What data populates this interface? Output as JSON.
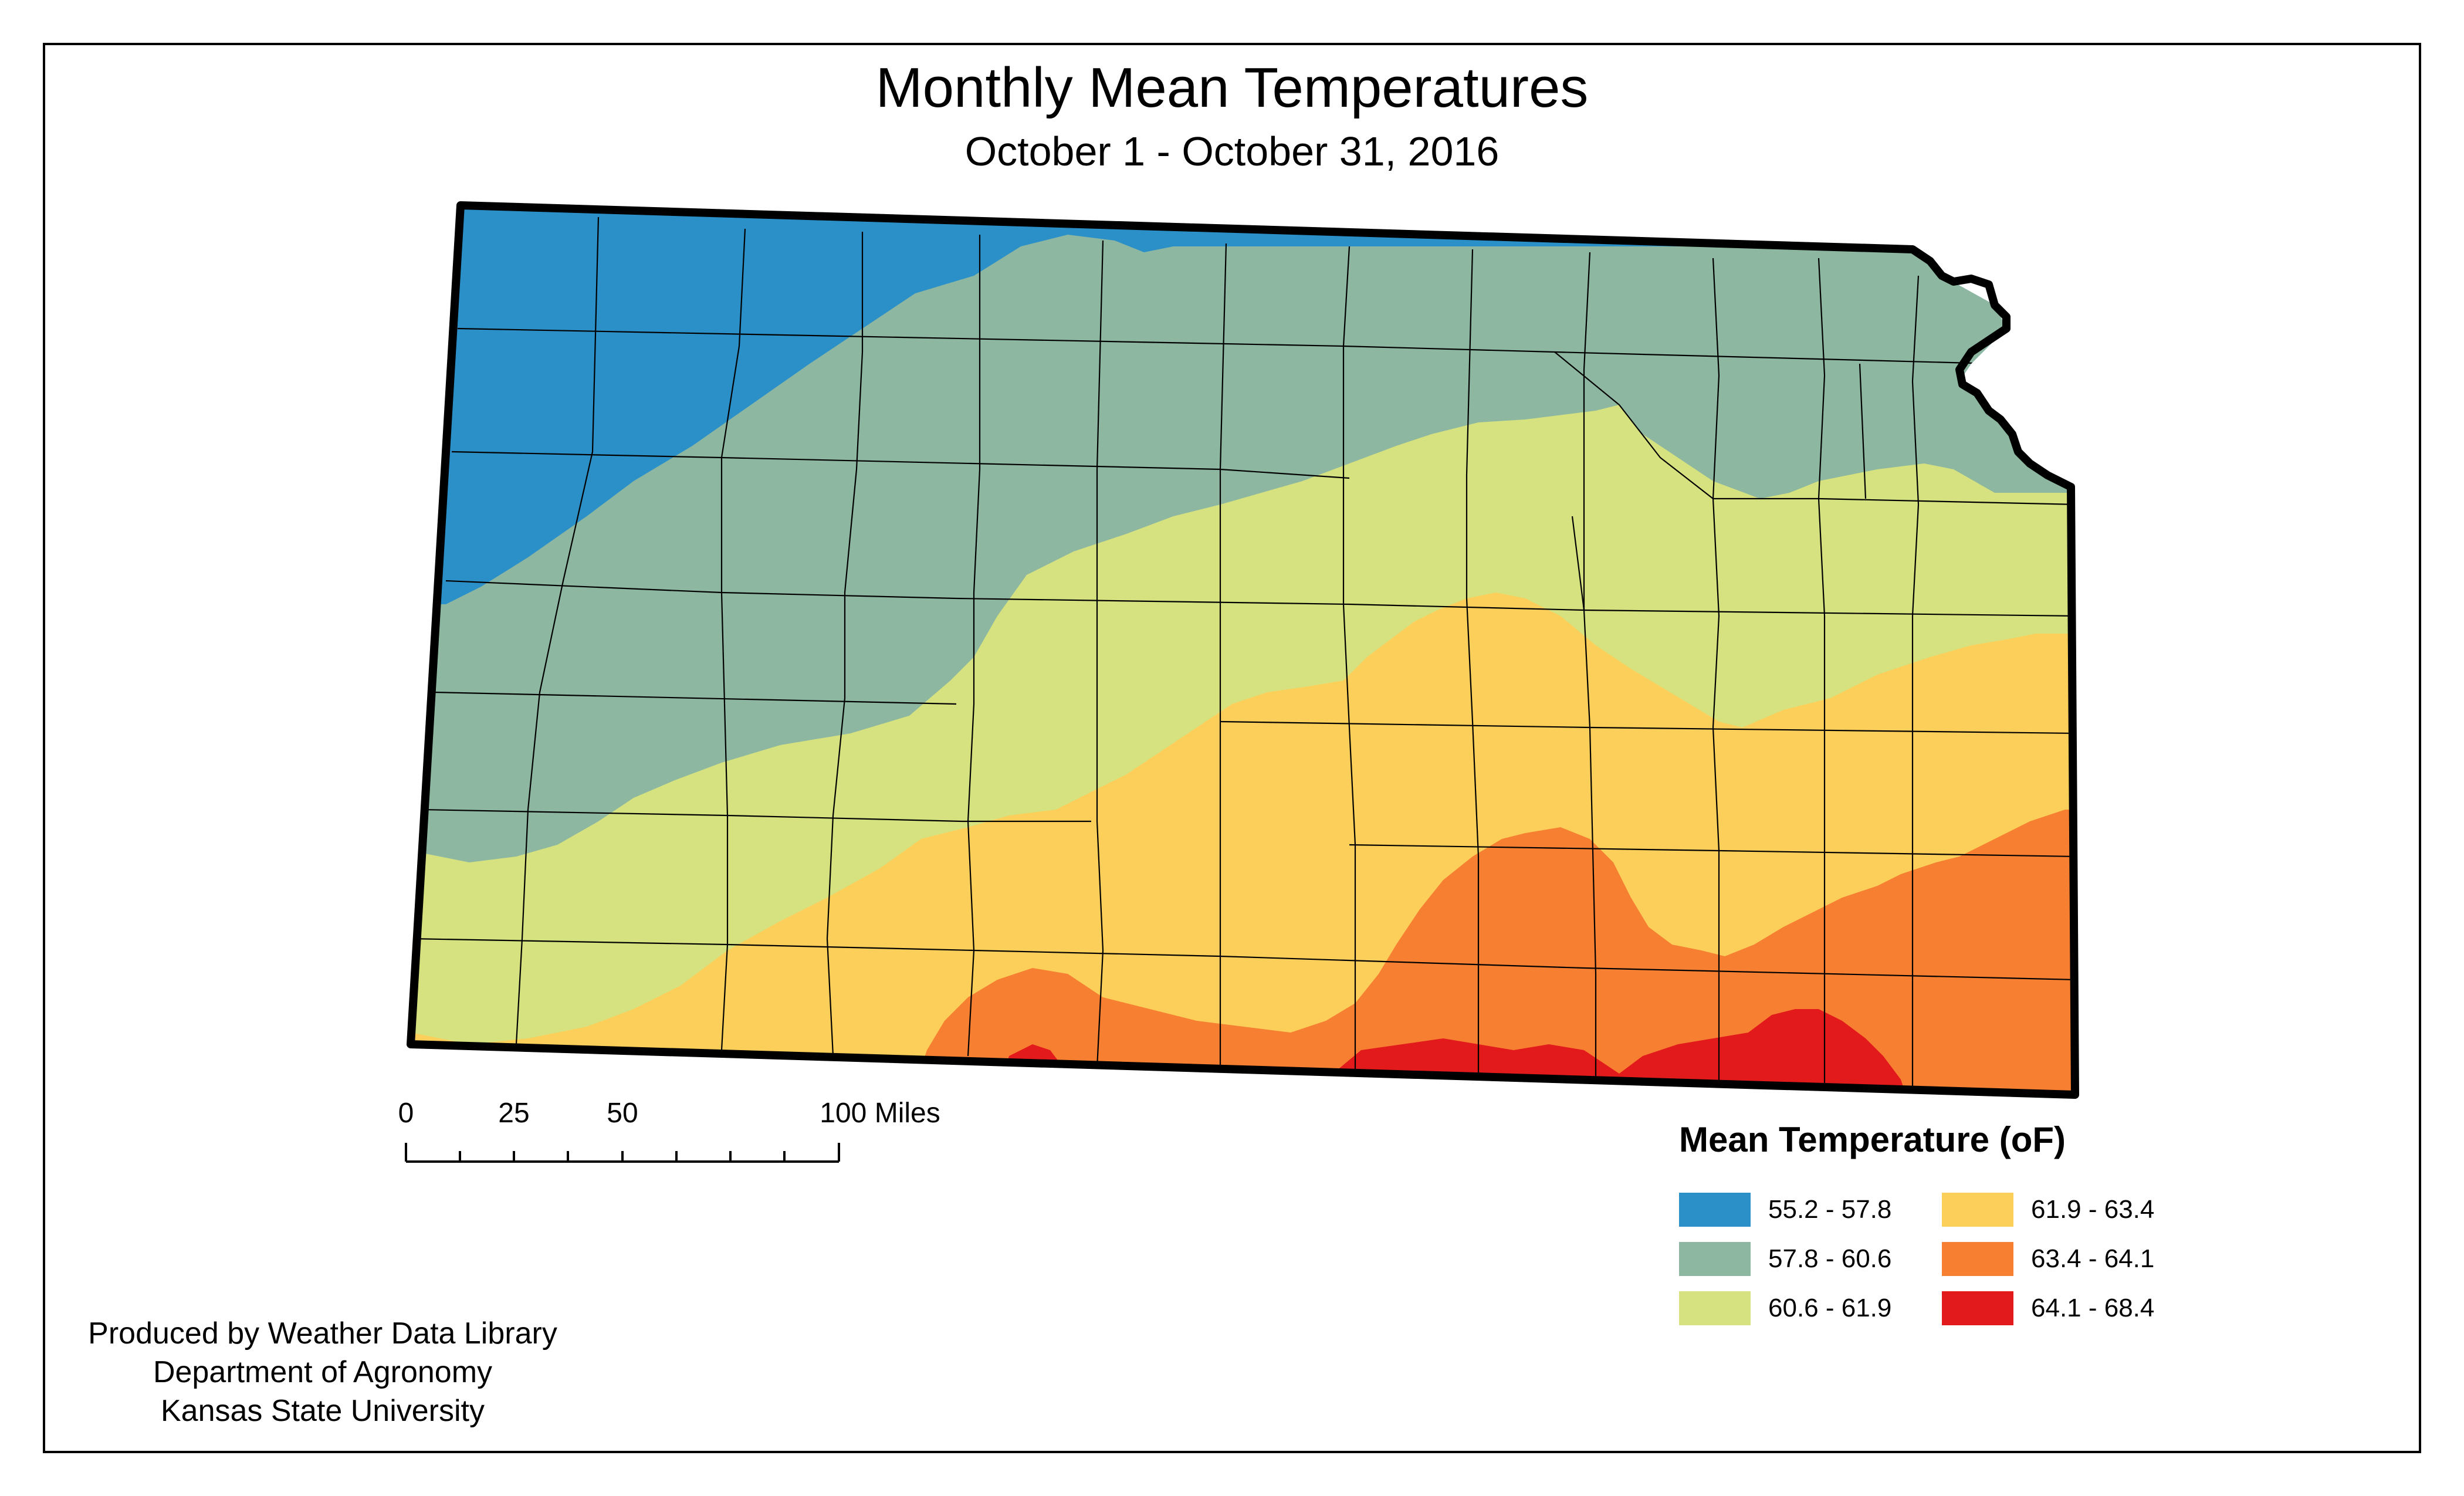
{
  "map": {
    "title": "Monthly Mean Temperatures",
    "subtitle": "October 1 - October 31, 2016",
    "region": "Kansas"
  },
  "scale_bar": {
    "labels": [
      "0",
      "25",
      "50",
      "100 Miles"
    ]
  },
  "legend": {
    "title": "Mean Temperature (oF)",
    "items": [
      {
        "label": "55.2 - 57.8",
        "color": "#2b8fc8"
      },
      {
        "label": "57.8 - 60.6",
        "color": "#8db7a0"
      },
      {
        "label": "60.6 - 61.9",
        "color": "#d6e27f"
      },
      {
        "label": "61.9 - 63.4",
        "color": "#fccf5a"
      },
      {
        "label": "63.4 - 64.1",
        "color": "#f67f31"
      },
      {
        "label": "64.1 - 68.4",
        "color": "#e31a1c"
      }
    ]
  },
  "credits": {
    "line1": "Produced by Weather Data Library",
    "line2": "Department of Agronomy",
    "line3": "Kansas State University"
  }
}
